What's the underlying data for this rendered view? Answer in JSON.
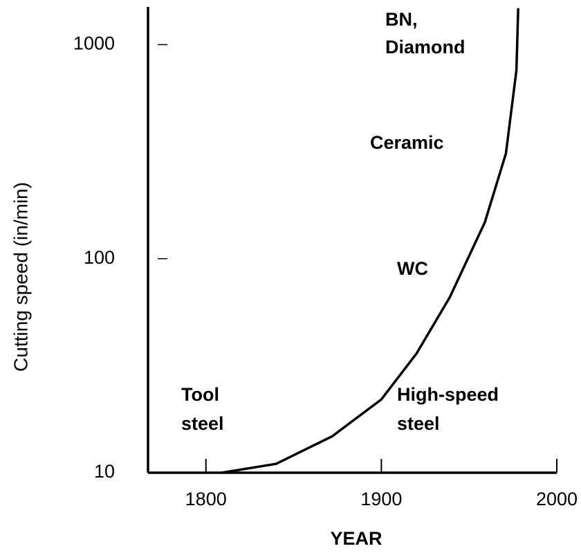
{
  "chart_data": {
    "type": "line",
    "xlabel": "YEAR",
    "ylabel": "Cutting speed (in/min)",
    "x": [
      1809,
      1840,
      1872,
      1900,
      1920,
      1939,
      1959,
      1971,
      1977,
      1978
    ],
    "series": [
      {
        "color": "#000000",
        "values": [
          10,
          11,
          14.8,
          22,
          36,
          66,
          148,
          310,
          760,
          1480
        ]
      }
    ],
    "xlim": [
      1767,
      2000
    ],
    "xticks": [
      1800,
      1900,
      2000
    ],
    "ylim": [
      10,
      1500
    ],
    "yticks": [
      10,
      100,
      1000
    ],
    "ylog": true,
    "annotations": [
      "BN,",
      "Diamond",
      "Ceramic",
      "WC",
      "Tool",
      "steel",
      "High-speed",
      "steel"
    ]
  }
}
